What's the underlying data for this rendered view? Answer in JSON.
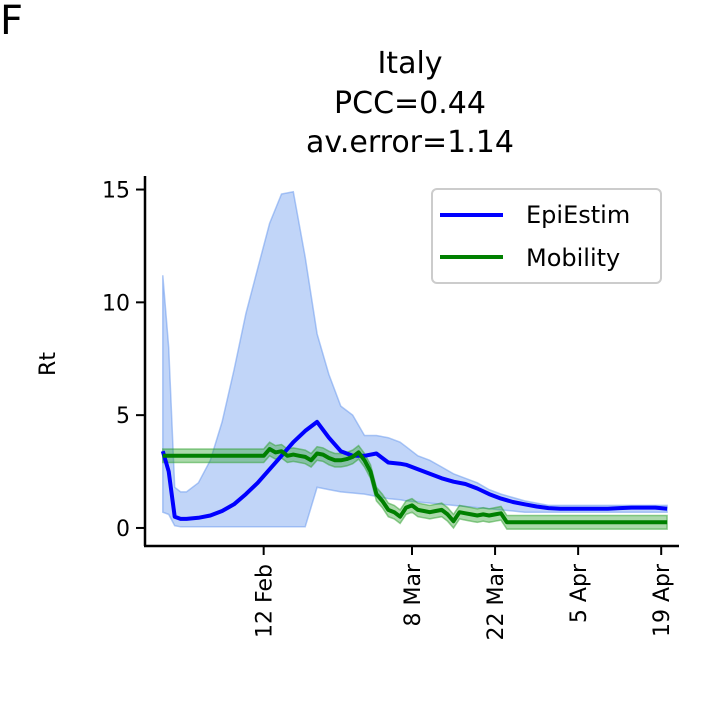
{
  "panel_letter": "F",
  "chart_data": {
    "type": "line",
    "title_lines": [
      "Italy",
      "PCC=0.44",
      "av.error=1.14"
    ],
    "xlabel": "",
    "ylabel": "Rt",
    "x_ticks": [
      "2020-02-12",
      "2020-03-08",
      "2020-03-22",
      "2020-04-05",
      "2020-04-19"
    ],
    "x_tick_labels": [
      "12 Feb",
      "8 Mar",
      "22 Mar",
      "5 Apr",
      "19 Apr"
    ],
    "y_ticks": [
      0,
      5,
      10,
      15
    ],
    "ylim": [
      -0.8,
      15.6
    ],
    "xlim": [
      "2020-01-23",
      "2020-04-22"
    ],
    "grid": false,
    "legend_position": "top-right",
    "series": [
      {
        "name": "EpiEstim",
        "color": "#0000ff",
        "band_color": "#6495ed",
        "x": [
          "2020-01-26",
          "2020-01-27",
          "2020-01-28",
          "2020-01-29",
          "2020-01-30",
          "2020-02-01",
          "2020-02-03",
          "2020-02-05",
          "2020-02-07",
          "2020-02-09",
          "2020-02-11",
          "2020-02-13",
          "2020-02-15",
          "2020-02-17",
          "2020-02-19",
          "2020-02-21",
          "2020-02-23",
          "2020-02-25",
          "2020-02-27",
          "2020-02-29",
          "2020-03-02",
          "2020-03-04",
          "2020-03-06",
          "2020-03-07",
          "2020-03-09",
          "2020-03-11",
          "2020-03-13",
          "2020-03-15",
          "2020-03-17",
          "2020-03-19",
          "2020-03-21",
          "2020-03-23",
          "2020-03-25",
          "2020-03-27",
          "2020-03-29",
          "2020-03-31",
          "2020-04-02",
          "2020-04-04",
          "2020-04-06",
          "2020-04-08",
          "2020-04-10",
          "2020-04-12",
          "2020-04-14",
          "2020-04-16",
          "2020-04-18",
          "2020-04-20"
        ],
        "y": [
          3.4,
          2.5,
          0.5,
          0.4,
          0.4,
          0.45,
          0.55,
          0.75,
          1.05,
          1.5,
          2.0,
          2.6,
          3.2,
          3.8,
          4.3,
          4.7,
          4.0,
          3.4,
          3.2,
          3.2,
          3.3,
          2.9,
          2.85,
          2.8,
          2.6,
          2.4,
          2.2,
          2.05,
          1.95,
          1.75,
          1.5,
          1.3,
          1.15,
          1.05,
          0.95,
          0.88,
          0.85,
          0.85,
          0.85,
          0.85,
          0.85,
          0.88,
          0.9,
          0.9,
          0.9,
          0.85
        ],
        "lower": [
          0.7,
          0.6,
          0.1,
          0.05,
          0.05,
          0.05,
          0.05,
          0.05,
          0.05,
          0.05,
          0.05,
          0.05,
          0.05,
          0.05,
          0.05,
          1.8,
          1.7,
          1.6,
          1.55,
          1.5,
          1.4,
          1.3,
          1.25,
          1.2,
          1.15,
          1.1,
          1.05,
          1.0,
          0.95,
          0.9,
          0.85,
          0.8,
          0.75,
          0.7,
          0.7,
          0.7,
          0.7,
          0.7,
          0.7,
          0.7,
          0.7,
          0.7,
          0.7,
          0.7,
          0.7,
          0.7
        ],
        "upper": [
          11.2,
          8.0,
          1.8,
          1.6,
          1.6,
          2.0,
          3.0,
          4.7,
          7.0,
          9.5,
          11.5,
          13.5,
          14.8,
          14.9,
          12.0,
          8.6,
          6.8,
          5.4,
          5.0,
          4.1,
          4.1,
          4.0,
          3.8,
          3.6,
          3.2,
          3.0,
          2.7,
          2.4,
          2.2,
          2.0,
          1.7,
          1.5,
          1.35,
          1.2,
          1.1,
          1.0,
          1.0,
          1.0,
          1.0,
          1.0,
          1.0,
          1.0,
          1.0,
          1.0,
          1.0,
          1.0
        ]
      },
      {
        "name": "Mobility",
        "color": "#008000",
        "band_color": "#2ca02c",
        "x": [
          "2020-01-26",
          "2020-01-30",
          "2020-02-03",
          "2020-02-07",
          "2020-02-10",
          "2020-02-11",
          "2020-02-12",
          "2020-02-13",
          "2020-02-14",
          "2020-02-15",
          "2020-02-16",
          "2020-02-17",
          "2020-02-18",
          "2020-02-19",
          "2020-02-20",
          "2020-02-21",
          "2020-02-22",
          "2020-02-23",
          "2020-02-24",
          "2020-02-25",
          "2020-02-26",
          "2020-02-27",
          "2020-02-28",
          "2020-02-29",
          "2020-03-01",
          "2020-03-02",
          "2020-03-03",
          "2020-03-04",
          "2020-03-05",
          "2020-03-06",
          "2020-03-07",
          "2020-03-08",
          "2020-03-09",
          "2020-03-10",
          "2020-03-11",
          "2020-03-12",
          "2020-03-13",
          "2020-03-14",
          "2020-03-15",
          "2020-03-16",
          "2020-03-17",
          "2020-03-18",
          "2020-03-19",
          "2020-03-20",
          "2020-03-21",
          "2020-03-22",
          "2020-03-23",
          "2020-03-24",
          "2020-03-25",
          "2020-03-26",
          "2020-03-27",
          "2020-03-28",
          "2020-03-29",
          "2020-03-30",
          "2020-04-05",
          "2020-04-12",
          "2020-04-20"
        ],
        "y": [
          3.2,
          3.2,
          3.2,
          3.2,
          3.2,
          3.2,
          3.2,
          3.5,
          3.35,
          3.4,
          3.2,
          3.25,
          3.2,
          3.15,
          3.0,
          3.3,
          3.25,
          3.1,
          3.0,
          3.0,
          3.05,
          3.15,
          3.35,
          3.0,
          2.5,
          1.5,
          1.2,
          0.8,
          0.7,
          0.5,
          0.9,
          1.0,
          0.8,
          0.75,
          0.7,
          0.75,
          0.8,
          0.6,
          0.3,
          0.7,
          0.65,
          0.6,
          0.55,
          0.6,
          0.55,
          0.6,
          0.65,
          0.25,
          0.25,
          0.25,
          0.25,
          0.25,
          0.25,
          0.25,
          0.25,
          0.25,
          0.25
        ],
        "band_halfwidth": 0.3
      }
    ]
  }
}
